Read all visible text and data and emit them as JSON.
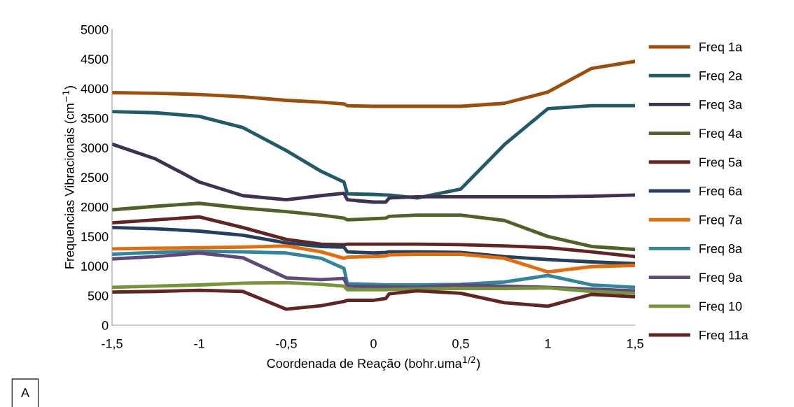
{
  "chart_data": {
    "type": "line",
    "xlabel": "Coordenada de Reação (bohr.uma$^{1/2}$)",
    "ylabel": "Frequencias Vibracionais (cm$^{−1}$)",
    "x": [
      -1.5,
      -1.25,
      -1.0,
      -0.75,
      -0.5,
      -0.3,
      -0.17,
      -0.15,
      0,
      0.07,
      0.09,
      0.25,
      0.5,
      0.75,
      1.0,
      1.25,
      1.5
    ],
    "series": [
      {
        "name": "Freq 1a",
        "color": "#9c4e0c",
        "values": [
          3930,
          3920,
          3900,
          3860,
          3800,
          3770,
          3740,
          3710,
          3700,
          3700,
          3700,
          3700,
          3700,
          3750,
          3940,
          4340,
          4460
        ]
      },
      {
        "name": "Freq 2a",
        "color": "#215a68",
        "values": [
          3610,
          3590,
          3530,
          3340,
          2950,
          2600,
          2420,
          2220,
          2210,
          2200,
          2200,
          2150,
          2300,
          3050,
          3660,
          3710,
          3710
        ]
      },
      {
        "name": "Freq 3a",
        "color": "#3f3152",
        "values": [
          3060,
          2810,
          2420,
          2190,
          2120,
          2190,
          2230,
          2120,
          2080,
          2080,
          2150,
          2170,
          2170,
          2170,
          2170,
          2180,
          2200
        ]
      },
      {
        "name": "Freq 4a",
        "color": "#4f6228",
        "values": [
          1950,
          2010,
          2060,
          1980,
          1920,
          1860,
          1810,
          1780,
          1800,
          1810,
          1840,
          1860,
          1860,
          1770,
          1500,
          1330,
          1280
        ]
      },
      {
        "name": "Freq 5a",
        "color": "#632523",
        "values": [
          1730,
          1780,
          1830,
          1650,
          1450,
          1370,
          1360,
          1370,
          1370,
          1370,
          1370,
          1370,
          1360,
          1340,
          1310,
          1240,
          1160
        ]
      },
      {
        "name": "Freq 6a",
        "color": "#243f60",
        "values": [
          1650,
          1630,
          1590,
          1520,
          1390,
          1330,
          1320,
          1240,
          1220,
          1230,
          1240,
          1240,
          1230,
          1160,
          1110,
          1070,
          1040
        ]
      },
      {
        "name": "Freq 7a",
        "color": "#e46c0a",
        "values": [
          1290,
          1300,
          1310,
          1320,
          1340,
          1240,
          1130,
          1150,
          1160,
          1170,
          1190,
          1200,
          1200,
          1130,
          900,
          990,
          1010
        ]
      },
      {
        "name": "Freq 8a",
        "color": "#31859c",
        "values": [
          1200,
          1230,
          1250,
          1240,
          1220,
          1130,
          960,
          700,
          690,
          680,
          680,
          680,
          690,
          730,
          840,
          680,
          640
        ]
      },
      {
        "name": "Freq 9a",
        "color": "#5f497a",
        "values": [
          1120,
          1160,
          1220,
          1140,
          800,
          770,
          790,
          660,
          650,
          650,
          645,
          640,
          680,
          660,
          640,
          610,
          580
        ]
      },
      {
        "name": "Freq 10",
        "color": "#77933c",
        "values": [
          640,
          660,
          680,
          710,
          720,
          690,
          660,
          600,
          600,
          600,
          605,
          610,
          620,
          620,
          630,
          570,
          540
        ]
      },
      {
        "name": "Freq 11a",
        "color": "#632523",
        "values": [
          560,
          570,
          590,
          570,
          270,
          330,
          400,
          420,
          420,
          450,
          530,
          580,
          540,
          380,
          320,
          520,
          480
        ]
      }
    ],
    "xlim": [
      -1.5,
      1.5
    ],
    "xticks": [
      {
        "value": -1.5,
        "label": "-1,5"
      },
      {
        "value": -1,
        "label": "-1"
      },
      {
        "value": -0.5,
        "label": "-0,5"
      },
      {
        "value": 0,
        "label": "0"
      },
      {
        "value": 0.5,
        "label": "0,5"
      },
      {
        "value": 1,
        "label": "1"
      },
      {
        "value": 1.5,
        "label": "1,5"
      }
    ],
    "ylim": [
      0,
      5000
    ],
    "yticks": [
      0,
      500,
      1000,
      1500,
      2000,
      2500,
      3000,
      3500,
      4000,
      4500,
      5000
    ],
    "grid": false,
    "legend": "right",
    "marker": "none",
    "line_style": "solid",
    "annotations": [
      "A"
    ]
  }
}
